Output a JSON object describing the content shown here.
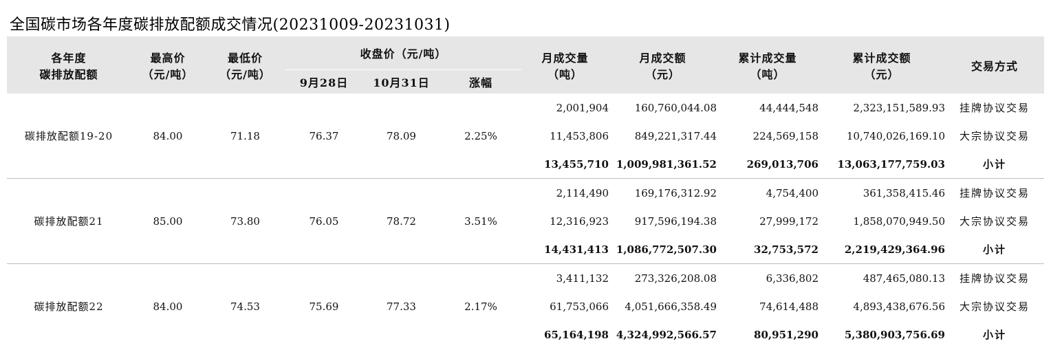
{
  "title": "全国碳市场各年度碳排放配额成交情况(20231009-20231031)",
  "header": {
    "col_name": [
      "各年度",
      "碳排放配额"
    ],
    "col_high": [
      "最高价",
      "（元/吨）"
    ],
    "col_low": [
      "最低价",
      "（元/吨）"
    ],
    "col_close_group": "收盘价（元/吨）",
    "col_close_sep": "9月28日",
    "col_close_oct": "10月31日",
    "col_change": "涨幅",
    "col_month_vol": [
      "月成交量",
      "（吨）"
    ],
    "col_month_amt": [
      "月成交额",
      "（元）"
    ],
    "col_cum_vol": [
      "累计成交量",
      "（吨）"
    ],
    "col_cum_amt": [
      "累计成交额",
      "（元）"
    ],
    "col_method": "交易方式"
  },
  "groups": [
    {
      "name": "碳排放配额19-20",
      "high": "84.00",
      "low": "71.18",
      "close_sep": "76.37",
      "close_oct": "78.09",
      "change": "2.25%",
      "rows": [
        {
          "month_vol": "2,001,904",
          "month_amt": "160,760,044.08",
          "cum_vol": "44,444,548",
          "cum_amt": "2,323,151,589.93",
          "method": "挂牌协议交易"
        },
        {
          "month_vol": "11,453,806",
          "month_amt": "849,221,317.44",
          "cum_vol": "224,569,158",
          "cum_amt": "10,740,026,169.10",
          "method": "大宗协议交易"
        },
        {
          "month_vol": "13,455,710",
          "month_amt": "1,009,981,361.52",
          "cum_vol": "269,013,706",
          "cum_amt": "13,063,177,759.03",
          "method": "小计"
        }
      ]
    },
    {
      "name": "碳排放配额21",
      "high": "85.00",
      "low": "73.80",
      "close_sep": "76.05",
      "close_oct": "78.72",
      "change": "3.51%",
      "rows": [
        {
          "month_vol": "2,114,490",
          "month_amt": "169,176,312.92",
          "cum_vol": "4,754,400",
          "cum_amt": "361,358,415.46",
          "method": "挂牌协议交易"
        },
        {
          "month_vol": "12,316,923",
          "month_amt": "917,596,194.38",
          "cum_vol": "27,999,172",
          "cum_amt": "1,858,070,949.50",
          "method": "大宗协议交易"
        },
        {
          "month_vol": "14,431,413",
          "month_amt": "1,086,772,507.30",
          "cum_vol": "32,753,572",
          "cum_amt": "2,219,429,364.96",
          "method": "小计"
        }
      ]
    },
    {
      "name": "碳排放配额22",
      "high": "84.00",
      "low": "74.53",
      "close_sep": "75.69",
      "close_oct": "77.33",
      "change": "2.17%",
      "rows": [
        {
          "month_vol": "3,411,132",
          "month_amt": "273,326,208.08",
          "cum_vol": "6,336,802",
          "cum_amt": "487,465,080.13",
          "method": "挂牌协议交易"
        },
        {
          "month_vol": "61,753,066",
          "month_amt": "4,051,666,358.49",
          "cum_vol": "74,614,488",
          "cum_amt": "4,893,438,676.56",
          "method": "大宗协议交易"
        },
        {
          "month_vol": "65,164,198",
          "month_amt": "4,324,992,566.57",
          "cum_vol": "80,951,290",
          "cum_amt": "5,380,903,756.69",
          "method": "小计"
        }
      ]
    }
  ]
}
